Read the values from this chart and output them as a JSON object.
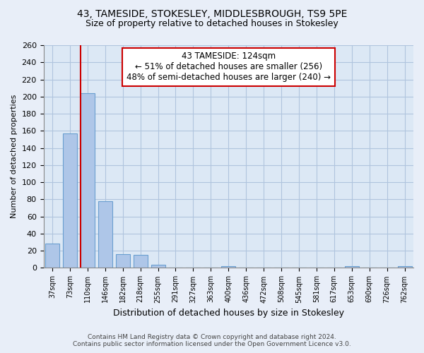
{
  "title_line1": "43, TAMESIDE, STOKESLEY, MIDDLESBROUGH, TS9 5PE",
  "title_line2": "Size of property relative to detached houses in Stokesley",
  "xlabel": "Distribution of detached houses by size in Stokesley",
  "ylabel": "Number of detached properties",
  "bar_labels": [
    "37sqm",
    "73sqm",
    "110sqm",
    "146sqm",
    "182sqm",
    "218sqm",
    "255sqm",
    "291sqm",
    "327sqm",
    "363sqm",
    "400sqm",
    "436sqm",
    "472sqm",
    "508sqm",
    "545sqm",
    "581sqm",
    "617sqm",
    "653sqm",
    "690sqm",
    "726sqm",
    "762sqm"
  ],
  "bar_values": [
    28,
    157,
    204,
    78,
    16,
    15,
    4,
    0,
    0,
    0,
    2,
    0,
    0,
    0,
    0,
    0,
    0,
    2,
    0,
    0,
    2
  ],
  "bar_color": "#aec6e8",
  "bar_edge_color": "#6a9fd0",
  "vline_color": "#cc0000",
  "vline_x_index": 2.0,
  "annotation_title": "43 TAMESIDE: 124sqm",
  "annotation_line2": "← 51% of detached houses are smaller (256)",
  "annotation_line3": "48% of semi-detached houses are larger (240) →",
  "annotation_box_color": "#ffffff",
  "annotation_box_edgecolor": "#cc0000",
  "ylim": [
    0,
    260
  ],
  "yticks": [
    0,
    20,
    40,
    60,
    80,
    100,
    120,
    140,
    160,
    180,
    200,
    220,
    240,
    260
  ],
  "footer_line1": "Contains HM Land Registry data © Crown copyright and database right 2024.",
  "footer_line2": "Contains public sector information licensed under the Open Government Licence v3.0.",
  "bg_color": "#e8eef8",
  "plot_bg_color": "#dce8f5",
  "grid_color": "#b0c4de"
}
